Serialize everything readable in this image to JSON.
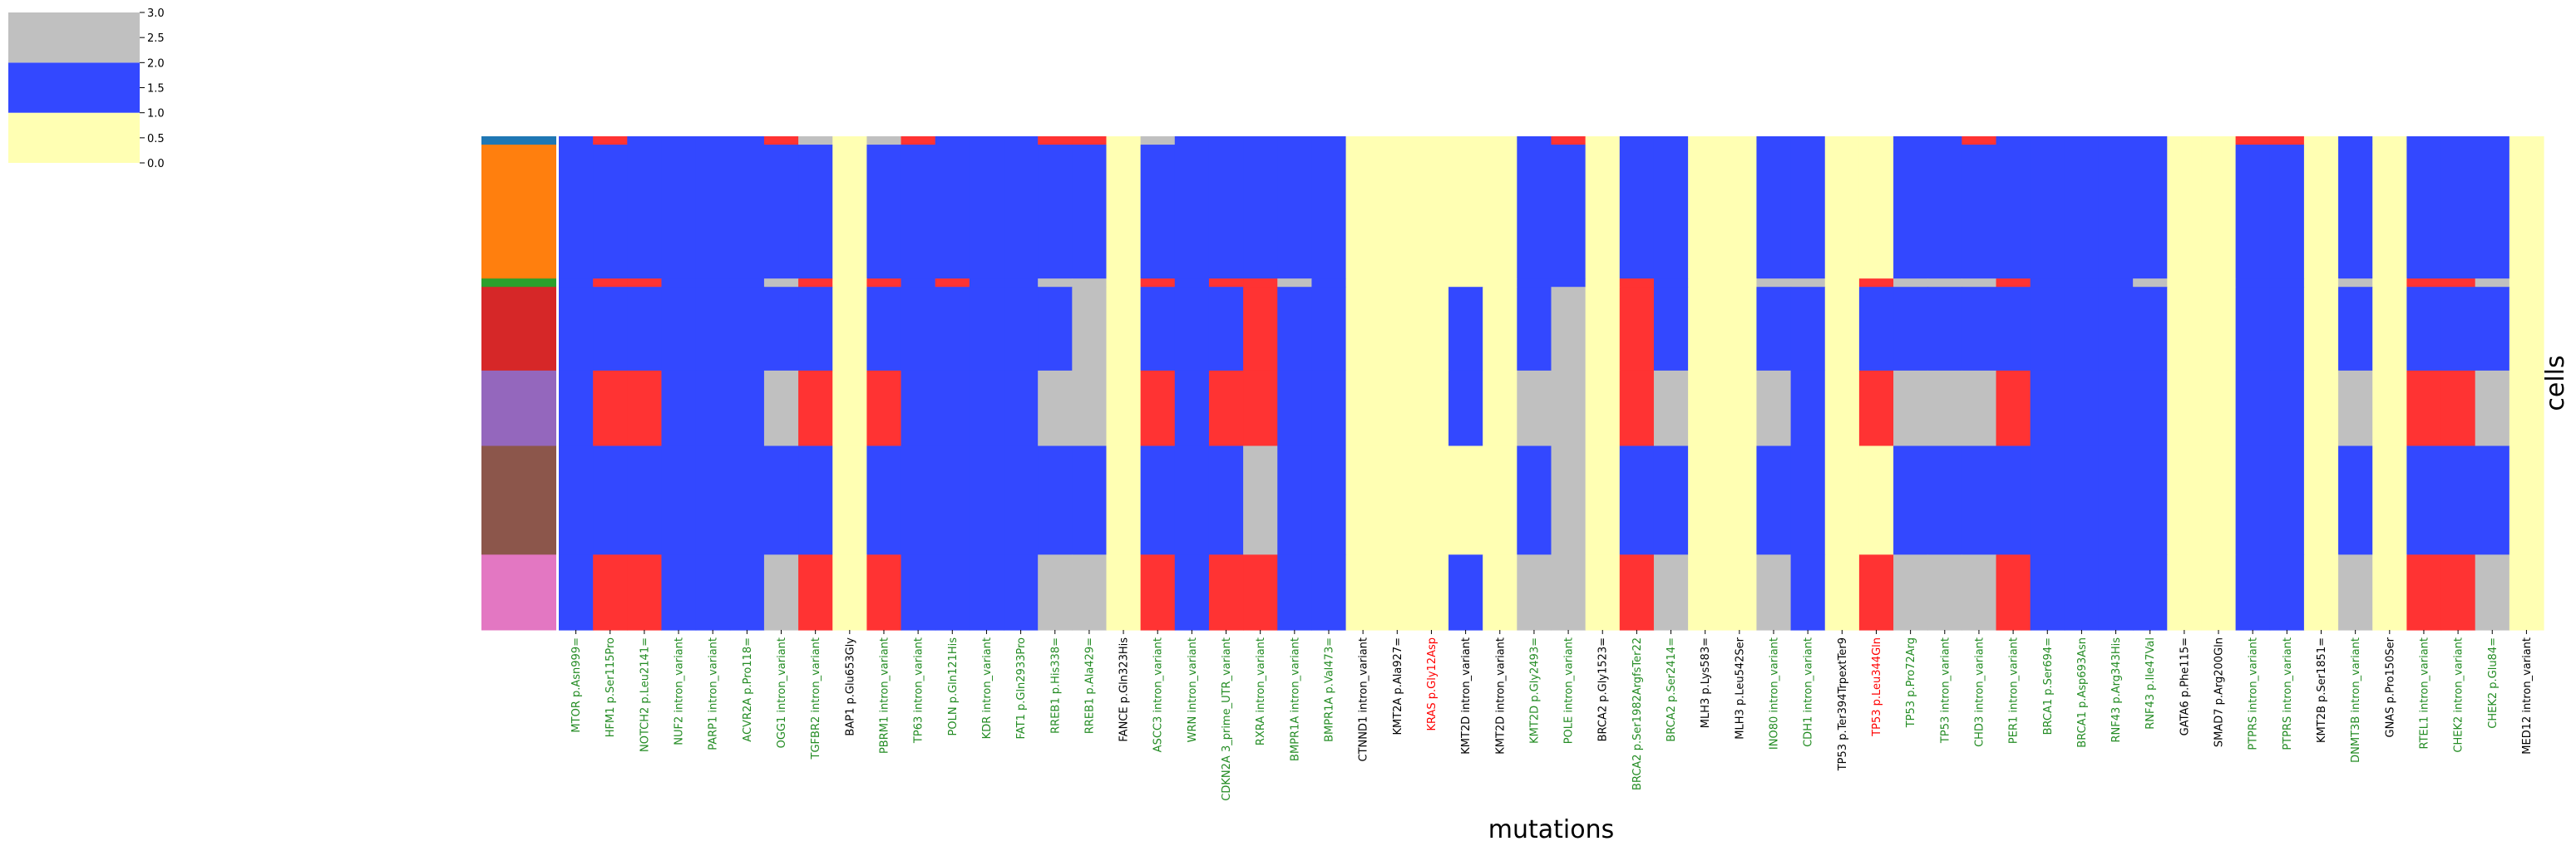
{
  "chart_data": {
    "type": "heatmap",
    "xlabel": "mutations",
    "ylabel": "cells",
    "colorbar": {
      "ticks": [
        "0.0",
        "0.5",
        "1.0",
        "1.5",
        "2.0",
        "2.5",
        "3.0"
      ],
      "range": [
        0,
        3
      ],
      "bands": [
        {
          "from": 0,
          "to": 1,
          "color": "#ffffb3"
        },
        {
          "from": 1,
          "to": 2,
          "color": "#3348ff"
        },
        {
          "from": 2,
          "to": 3,
          "color": "#c0c0c0"
        },
        {
          "from": 3,
          "to": 4,
          "color": "#ff3333"
        }
      ]
    },
    "value_colors": {
      "0": "#ffffb3",
      "1": "#3348ff",
      "2": "#c0c0c0",
      "3": "#ff3333"
    },
    "label_colors": {
      "g": "#228b22",
      "k": "#000000",
      "r": "#ff0000"
    },
    "row_group_colors": [
      "#1f77b4",
      "#ff7f0e",
      "#2ca02c",
      "#d62728",
      "#9467bd",
      "#8c564b",
      "#e377c2"
    ],
    "row_heights": [
      1,
      16,
      1,
      10,
      9,
      13,
      9
    ],
    "columns": [
      {
        "label": "MTOR p.Asn999=",
        "c": "g"
      },
      {
        "label": "HFM1 p.Ser115Pro",
        "c": "g"
      },
      {
        "label": "NOTCH2 p.Leu2141=",
        "c": "g"
      },
      {
        "label": "NUF2 intron_variant",
        "c": "g"
      },
      {
        "label": "PARP1 intron_variant",
        "c": "g"
      },
      {
        "label": "ACVR2A p.Pro118=",
        "c": "g"
      },
      {
        "label": "OGG1 intron_variant",
        "c": "g"
      },
      {
        "label": "TGFBR2 intron_variant",
        "c": "g"
      },
      {
        "label": "BAP1 p.Glu653Gly",
        "c": "k"
      },
      {
        "label": "PBRM1 intron_variant",
        "c": "g"
      },
      {
        "label": "TP63 intron_variant",
        "c": "g"
      },
      {
        "label": "POLN p.Gln121His",
        "c": "g"
      },
      {
        "label": "KDR intron_variant",
        "c": "g"
      },
      {
        "label": "FAT1 p.Gln2933Pro",
        "c": "g"
      },
      {
        "label": "RREB1 p.His338=",
        "c": "g"
      },
      {
        "label": "RREB1 p.Ala429=",
        "c": "g"
      },
      {
        "label": "FANCE p.Gln323His",
        "c": "k"
      },
      {
        "label": "ASCC3 intron_variant",
        "c": "g"
      },
      {
        "label": "WRN intron_variant",
        "c": "g"
      },
      {
        "label": "CDKN2A 3_prime_UTR_variant",
        "c": "g"
      },
      {
        "label": "RXRA intron_variant",
        "c": "g"
      },
      {
        "label": "BMPR1A intron_variant",
        "c": "g"
      },
      {
        "label": "BMPR1A p.Val473=",
        "c": "g"
      },
      {
        "label": "CTNND1 intron_variant",
        "c": "k"
      },
      {
        "label": "KMT2A p.Ala927=",
        "c": "k"
      },
      {
        "label": "KRAS p.Gly12Asp",
        "c": "r"
      },
      {
        "label": "KMT2D intron_variant",
        "c": "k"
      },
      {
        "label": "KMT2D intron_variant",
        "c": "k"
      },
      {
        "label": "KMT2D p.Gly2493=",
        "c": "g"
      },
      {
        "label": "POLE intron_variant",
        "c": "g"
      },
      {
        "label": "BRCA2 p.Gly1523=",
        "c": "k"
      },
      {
        "label": "BRCA2 p.Ser1982ArgfsTer22",
        "c": "g"
      },
      {
        "label": "BRCA2 p.Ser2414=",
        "c": "g"
      },
      {
        "label": "MLH3 p.Lys583=",
        "c": "k"
      },
      {
        "label": "MLH3 p.Leu542Ser",
        "c": "k"
      },
      {
        "label": "INO80 intron_variant",
        "c": "g"
      },
      {
        "label": "CDH1 intron_variant",
        "c": "g"
      },
      {
        "label": "TP53 p.Ter394TrpextTer9",
        "c": "k"
      },
      {
        "label": "TP53 p.Leu344Gln",
        "c": "r"
      },
      {
        "label": "TP53 p.Pro72Arg",
        "c": "g"
      },
      {
        "label": "TP53 intron_variant",
        "c": "g"
      },
      {
        "label": "CHD3 intron_variant",
        "c": "g"
      },
      {
        "label": "PER1 intron_variant",
        "c": "g"
      },
      {
        "label": "BRCA1 p.Ser694=",
        "c": "g"
      },
      {
        "label": "BRCA1 p.Asp693Asn",
        "c": "g"
      },
      {
        "label": "RNF43 p.Arg343His",
        "c": "g"
      },
      {
        "label": "RNF43 p.Ile47Val",
        "c": "g"
      },
      {
        "label": "GATA6 p.Phe115=",
        "c": "k"
      },
      {
        "label": "SMAD7 p.Arg200Gln",
        "c": "k"
      },
      {
        "label": "PTPRS intron_variant",
        "c": "g"
      },
      {
        "label": "PTPRS intron_variant",
        "c": "g"
      },
      {
        "label": "KMT2B p.Ser1851=",
        "c": "k"
      },
      {
        "label": "DNMT3B intron_variant",
        "c": "g"
      },
      {
        "label": "GNAS p.Pro150Ser",
        "c": "k"
      },
      {
        "label": "RTEL1 intron_variant",
        "c": "g"
      },
      {
        "label": "CHEK2 intron_variant",
        "c": "g"
      },
      {
        "label": "CHEK2 p.Glu84=",
        "c": "g"
      },
      {
        "label": "MED12 intron_variant",
        "c": "k"
      }
    ],
    "matrix": [
      [
        1,
        3,
        1,
        1,
        1,
        1,
        3,
        2,
        0,
        2,
        3,
        1,
        1,
        1,
        3,
        3,
        0,
        2,
        1,
        1,
        1,
        1,
        1,
        0,
        0,
        0,
        0,
        0,
        1,
        3,
        0,
        1,
        1,
        0,
        0,
        1,
        1,
        0,
        0,
        1,
        1,
        3,
        1,
        1,
        1,
        1,
        1,
        0,
        0,
        3,
        3,
        0,
        1,
        0,
        1,
        1,
        1,
        0
      ],
      [
        1,
        1,
        1,
        1,
        1,
        1,
        1,
        1,
        0,
        1,
        1,
        1,
        1,
        1,
        1,
        1,
        0,
        1,
        1,
        1,
        1,
        1,
        1,
        0,
        0,
        0,
        0,
        0,
        1,
        1,
        0,
        1,
        1,
        0,
        0,
        1,
        1,
        0,
        0,
        1,
        1,
        1,
        1,
        1,
        1,
        1,
        1,
        0,
        0,
        1,
        1,
        0,
        1,
        0,
        1,
        1,
        1,
        0
      ],
      [
        1,
        3,
        3,
        1,
        1,
        1,
        2,
        3,
        0,
        3,
        1,
        3,
        1,
        1,
        2,
        2,
        0,
        3,
        1,
        3,
        3,
        2,
        1,
        0,
        0,
        0,
        0,
        0,
        1,
        1,
        0,
        3,
        1,
        0,
        0,
        2,
        2,
        0,
        3,
        2,
        2,
        2,
        3,
        1,
        1,
        1,
        2,
        0,
        0,
        1,
        1,
        0,
        2,
        0,
        3,
        3,
        2,
        0
      ],
      [
        1,
        1,
        1,
        1,
        1,
        1,
        1,
        1,
        0,
        1,
        1,
        1,
        1,
        1,
        1,
        2,
        0,
        1,
        1,
        1,
        3,
        1,
        1,
        0,
        0,
        0,
        1,
        0,
        1,
        2,
        0,
        3,
        1,
        0,
        0,
        1,
        1,
        0,
        1,
        1,
        1,
        1,
        1,
        1,
        1,
        1,
        1,
        0,
        0,
        1,
        1,
        0,
        1,
        0,
        1,
        1,
        1,
        0
      ],
      [
        1,
        3,
        3,
        1,
        1,
        1,
        2,
        3,
        0,
        3,
        1,
        1,
        1,
        1,
        2,
        2,
        0,
        3,
        1,
        3,
        3,
        1,
        1,
        0,
        0,
        0,
        1,
        0,
        2,
        2,
        0,
        3,
        2,
        0,
        0,
        2,
        1,
        0,
        3,
        2,
        2,
        2,
        3,
        1,
        1,
        1,
        1,
        0,
        0,
        1,
        1,
        0,
        2,
        0,
        3,
        3,
        2,
        0
      ],
      [
        1,
        1,
        1,
        1,
        1,
        1,
        1,
        1,
        0,
        1,
        1,
        1,
        1,
        1,
        1,
        1,
        0,
        1,
        1,
        1,
        2,
        1,
        1,
        0,
        0,
        0,
        0,
        0,
        1,
        2,
        0,
        1,
        1,
        0,
        0,
        1,
        1,
        0,
        0,
        1,
        1,
        1,
        1,
        1,
        1,
        1,
        1,
        0,
        0,
        1,
        1,
        0,
        1,
        0,
        1,
        1,
        1,
        0
      ],
      [
        1,
        3,
        3,
        1,
        1,
        1,
        2,
        3,
        0,
        3,
        1,
        1,
        1,
        1,
        2,
        2,
        0,
        3,
        1,
        3,
        3,
        1,
        1,
        0,
        0,
        0,
        1,
        0,
        2,
        2,
        0,
        3,
        2,
        0,
        0,
        2,
        1,
        0,
        3,
        2,
        2,
        2,
        3,
        1,
        1,
        1,
        1,
        0,
        0,
        1,
        1,
        0,
        2,
        0,
        3,
        3,
        2,
        0
      ]
    ]
  }
}
